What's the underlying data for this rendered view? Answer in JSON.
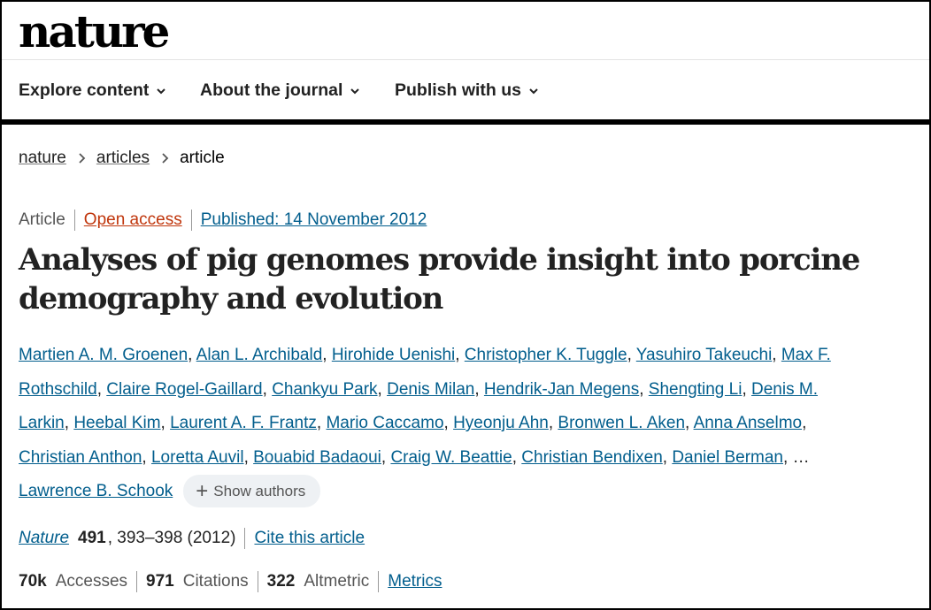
{
  "site": {
    "logo": "nature"
  },
  "nav": [
    {
      "label": "Explore content"
    },
    {
      "label": "About the journal"
    },
    {
      "label": "Publish with us"
    }
  ],
  "breadcrumb": [
    "nature",
    "articles",
    "article"
  ],
  "meta": {
    "type": "Article",
    "access": "Open access",
    "published": "Published: 14 November 2012"
  },
  "title": "Analyses of pig genomes provide insight into porcine demography and evolution",
  "authors": [
    "Martien A. M. Groenen",
    "Alan L. Archibald",
    "Hirohide Uenishi",
    "Christopher K. Tuggle",
    "Yasuhiro Takeuchi",
    "Max F. Rothschild",
    "Claire Rogel-Gaillard",
    "Chankyu Park",
    "Denis Milan",
    "Hendrik-Jan Megens",
    "Shengting Li",
    "Denis M. Larkin",
    "Heebal Kim",
    "Laurent A. F. Frantz",
    "Mario Caccamo",
    "Hyeonju Ahn",
    "Bronwen L. Aken",
    "Anna Anselmo",
    "Christian Anthon",
    "Loretta Auvil",
    "Bouabid Badaoui",
    "Craig W. Beattie",
    "Christian Bendixen",
    "Daniel Berman"
  ],
  "authors_ellipsis": "…",
  "last_author": "Lawrence B. Schook",
  "show_authors": "Show authors",
  "citation": {
    "journal": "Nature",
    "volume": "491",
    "pages": ", 393–398 (2012)",
    "cite_label": "Cite this article"
  },
  "metrics": {
    "accesses_value": "70k",
    "accesses_label": "Accesses",
    "citations_value": "971",
    "citations_label": "Citations",
    "altmetric_value": "322",
    "altmetric_label": "Altmetric",
    "metrics_link": "Metrics"
  },
  "colors": {
    "link": "#025e8d",
    "open_access": "#c0360c",
    "rule": "#000000"
  }
}
